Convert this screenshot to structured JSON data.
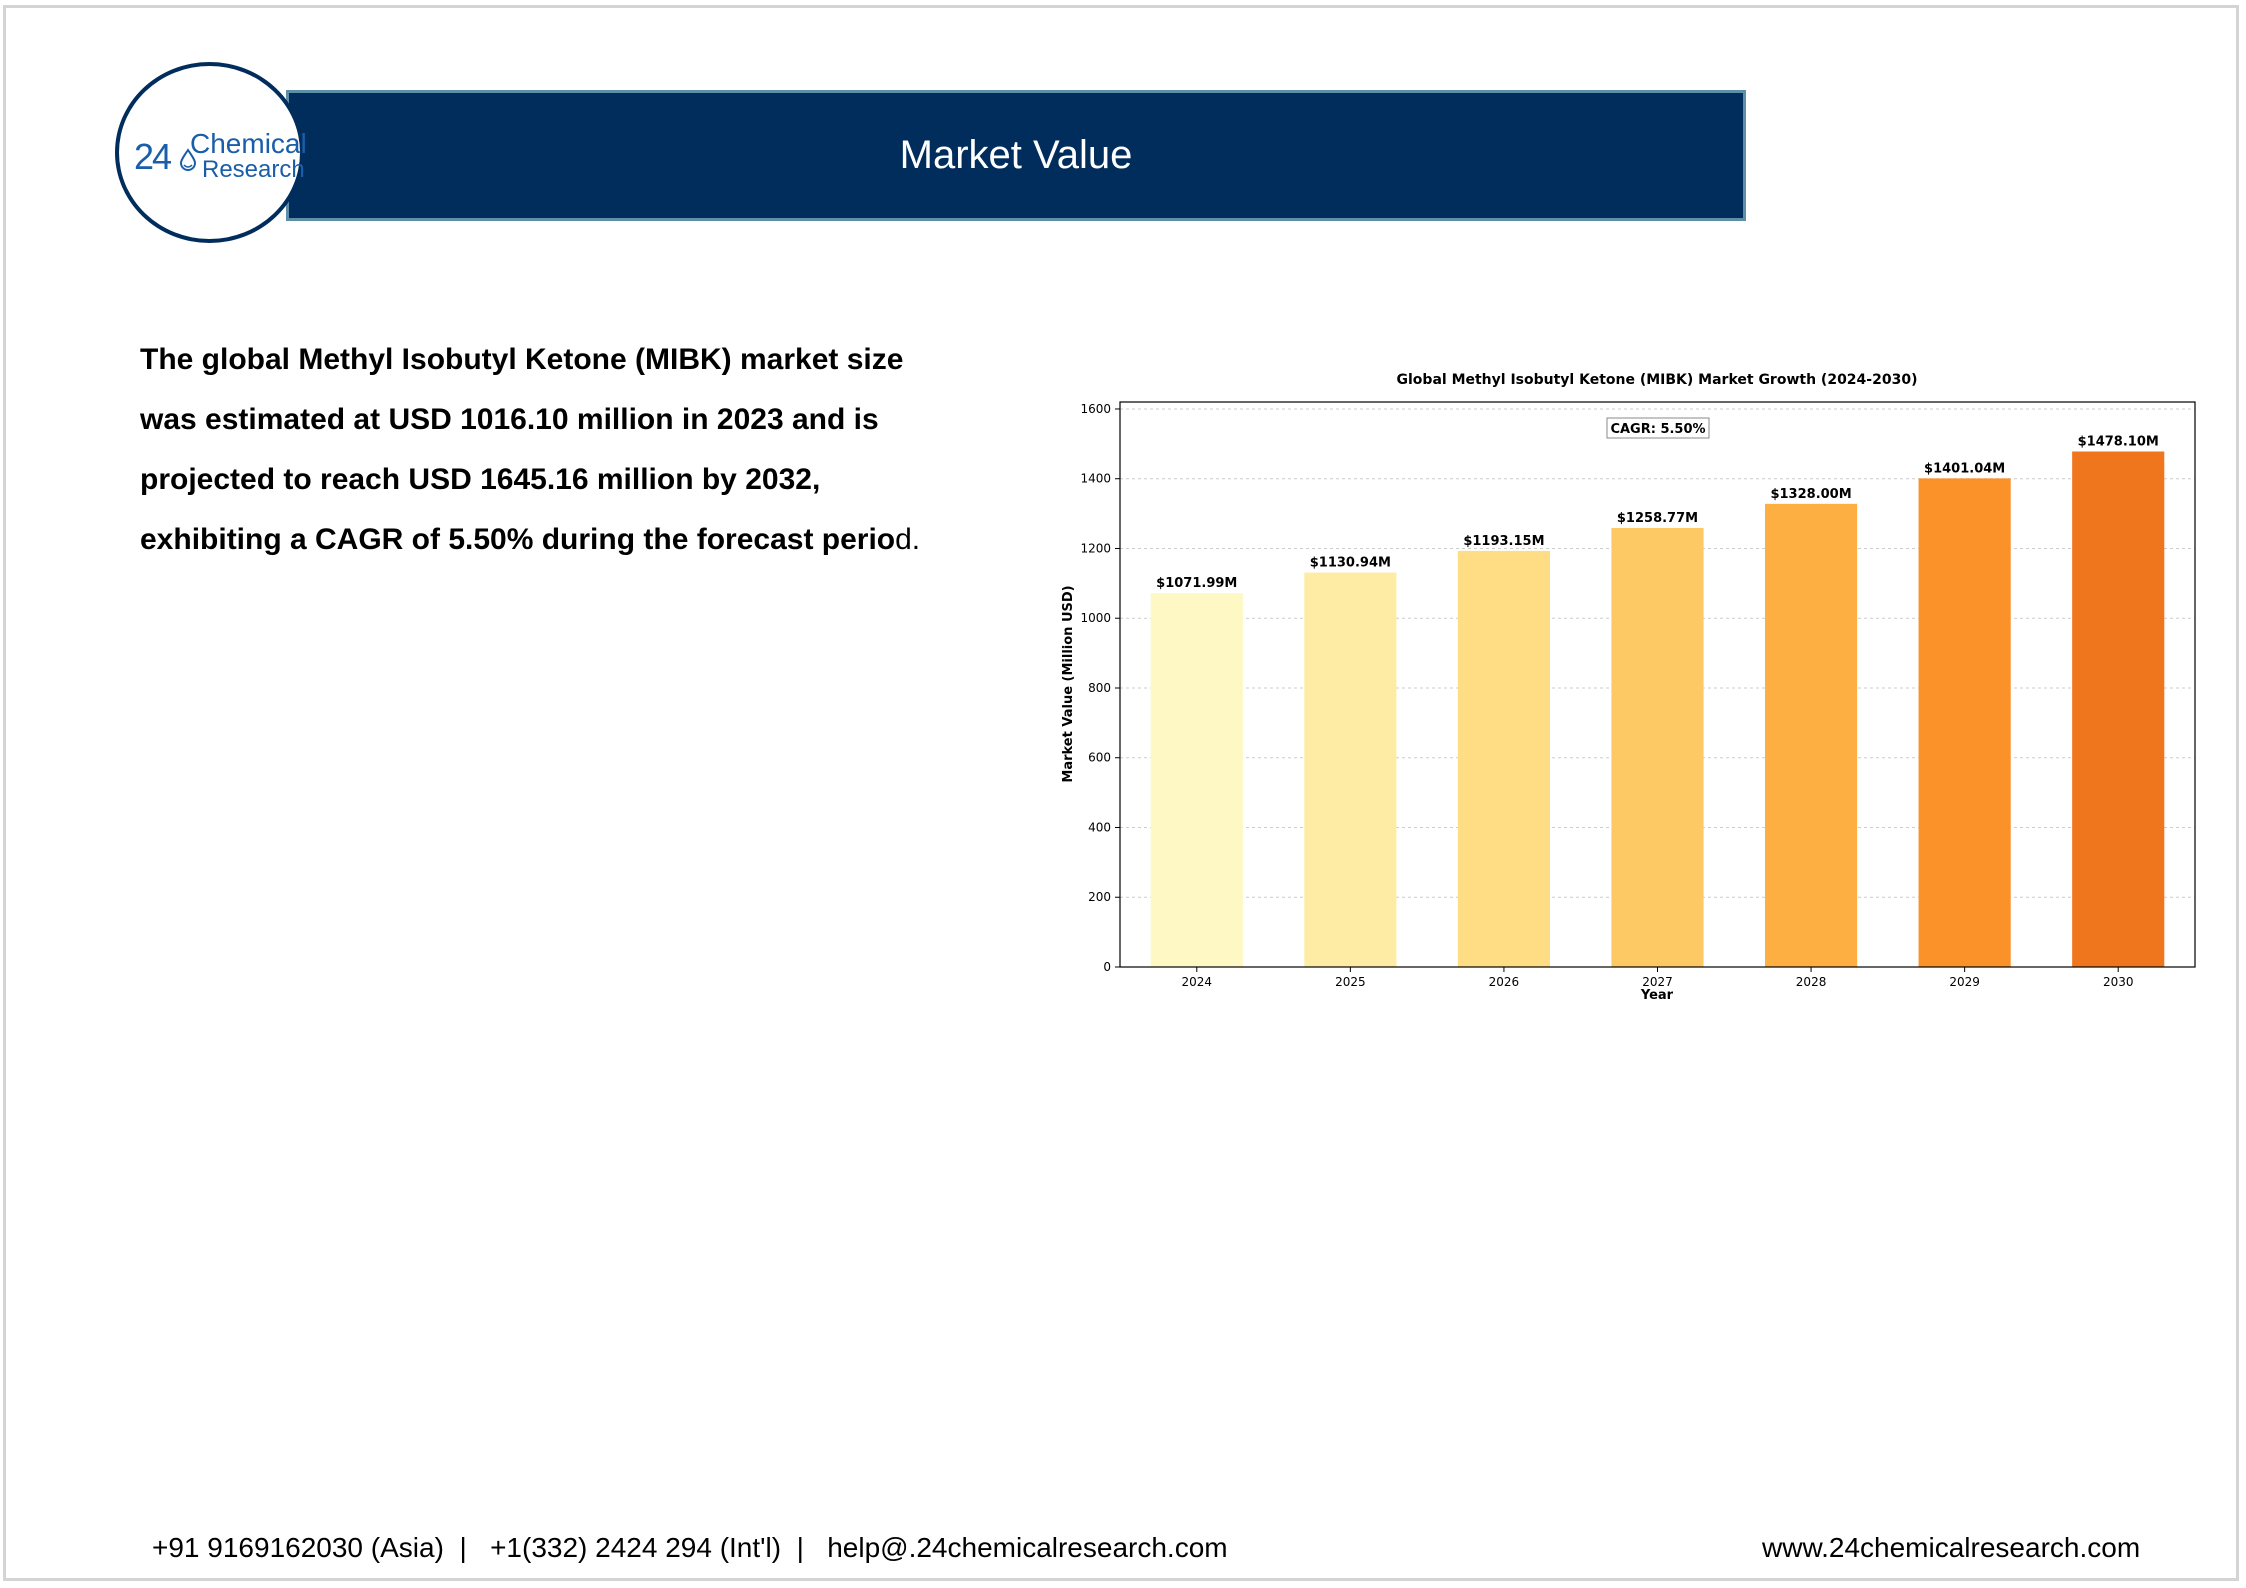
{
  "header": {
    "title": "Market Value"
  },
  "logo": {
    "number": "24",
    "line1": "Chemical",
    "line2": "Research",
    "color": "#1a5ea9"
  },
  "intro": {
    "text_bold": "The global Methyl Isobutyl Ketone (MIBK) market size was estimated at USD 1016.10 million in 2023 and is projected to reach USD 1645.16 million by 2032, exhibiting a CAGR of 5.50% during the forecast perio",
    "text_tail": "d."
  },
  "chart_data": {
    "type": "bar",
    "title": "Global Methyl Isobutyl Ketone (MIBK) Market Growth (2024-2030)",
    "xlabel": "Year",
    "ylabel": "Market Value (Million USD)",
    "categories": [
      "2024",
      "2025",
      "2026",
      "2027",
      "2028",
      "2029",
      "2030"
    ],
    "values": [
      1071.99,
      1130.94,
      1193.15,
      1258.77,
      1328.0,
      1401.04,
      1478.1
    ],
    "data_labels": [
      "$1071.99M",
      "$1130.94M",
      "$1193.15M",
      "$1258.77M",
      "$1328.00M",
      "$1401.04M",
      "$1478.10M"
    ],
    "colors": [
      "#fef8c4",
      "#feeca4",
      "#fedd85",
      "#fdc964",
      "#fdaf41",
      "#fb9229",
      "#f0761e"
    ],
    "ylim": [
      0,
      1620
    ],
    "yticks": [
      0,
      200,
      400,
      600,
      800,
      1000,
      1200,
      1400,
      1600
    ],
    "grid": true,
    "annotation": "CAGR: 5.50%"
  },
  "footer": {
    "contacts": "+91 9169162030 (Asia)  |   +1(332) 2424 294 (Int'l)  |   help@.24chemicalresearch.com",
    "website": "www.24chemicalresearch.com"
  }
}
